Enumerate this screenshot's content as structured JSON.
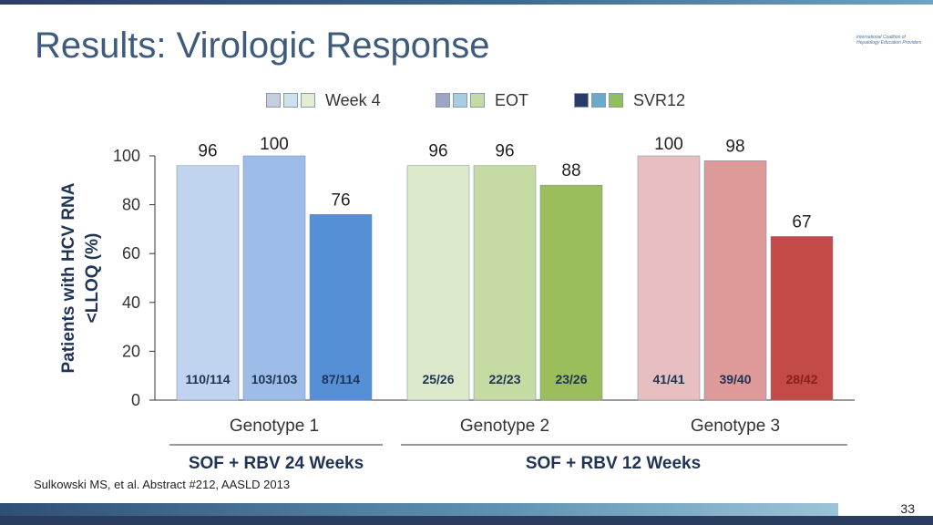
{
  "title": "Results: Virologic Response",
  "logo_text": "International Coalition of Hepatology Education Providers",
  "legend": [
    {
      "label": "Week 4",
      "swatches": [
        "#c4cedf",
        "#cfe0ee",
        "#e2edd2"
      ]
    },
    {
      "label": "EOT",
      "swatches": [
        "#9aa6c4",
        "#a9cde0",
        "#c4dba6"
      ]
    },
    {
      "label": "SVR12",
      "swatches": [
        "#2a3a6a",
        "#6aa9c8",
        "#8fbf5a"
      ]
    }
  ],
  "chart_data": {
    "type": "bar",
    "ylabel": "Patients with HCV RNA <LLOQ (%)",
    "ylim": [
      0,
      100
    ],
    "yticks": [
      0,
      20,
      40,
      60,
      80,
      100
    ],
    "categories": [
      "Genotype 1",
      "Genotype 2",
      "Genotype 3"
    ],
    "series": [
      {
        "name": "Week 4",
        "values": [
          96,
          96,
          100
        ],
        "counts": [
          "110/114",
          "25/26",
          "41/41"
        ]
      },
      {
        "name": "EOT",
        "values": [
          100,
          96,
          98
        ],
        "counts": [
          "103/103",
          "22/23",
          "39/40"
        ]
      },
      {
        "name": "SVR12",
        "values": [
          76,
          88,
          67
        ],
        "counts": [
          "87/114",
          "23/26",
          "28/42"
        ]
      }
    ],
    "bar_colors": [
      [
        "#c0d4ef",
        "#9dbde8",
        "#5590d6"
      ],
      [
        "#dce9cb",
        "#c6dba4",
        "#9bbd5c"
      ],
      [
        "#e8bfc1",
        "#de9a98",
        "#c24b48"
      ]
    ],
    "count_colors": [
      [
        "#1f3355",
        "#1f3355",
        "#1f3355"
      ],
      [
        "#1f3355",
        "#1f3355",
        "#1f3355"
      ],
      [
        "#1f3355",
        "#1f3355",
        "#8a1f1c"
      ]
    ],
    "groups": [
      {
        "label": "SOF + RBV 24 Weeks",
        "categories": [
          "Genotype 1"
        ]
      },
      {
        "label": "SOF + RBV 12 Weeks",
        "categories": [
          "Genotype 2",
          "Genotype 3"
        ]
      }
    ],
    "grid": false,
    "legend_position": "top-center"
  },
  "citation": "Sulkowski MS, et al. Abstract #212, AASLD 2013",
  "page_number": "33"
}
